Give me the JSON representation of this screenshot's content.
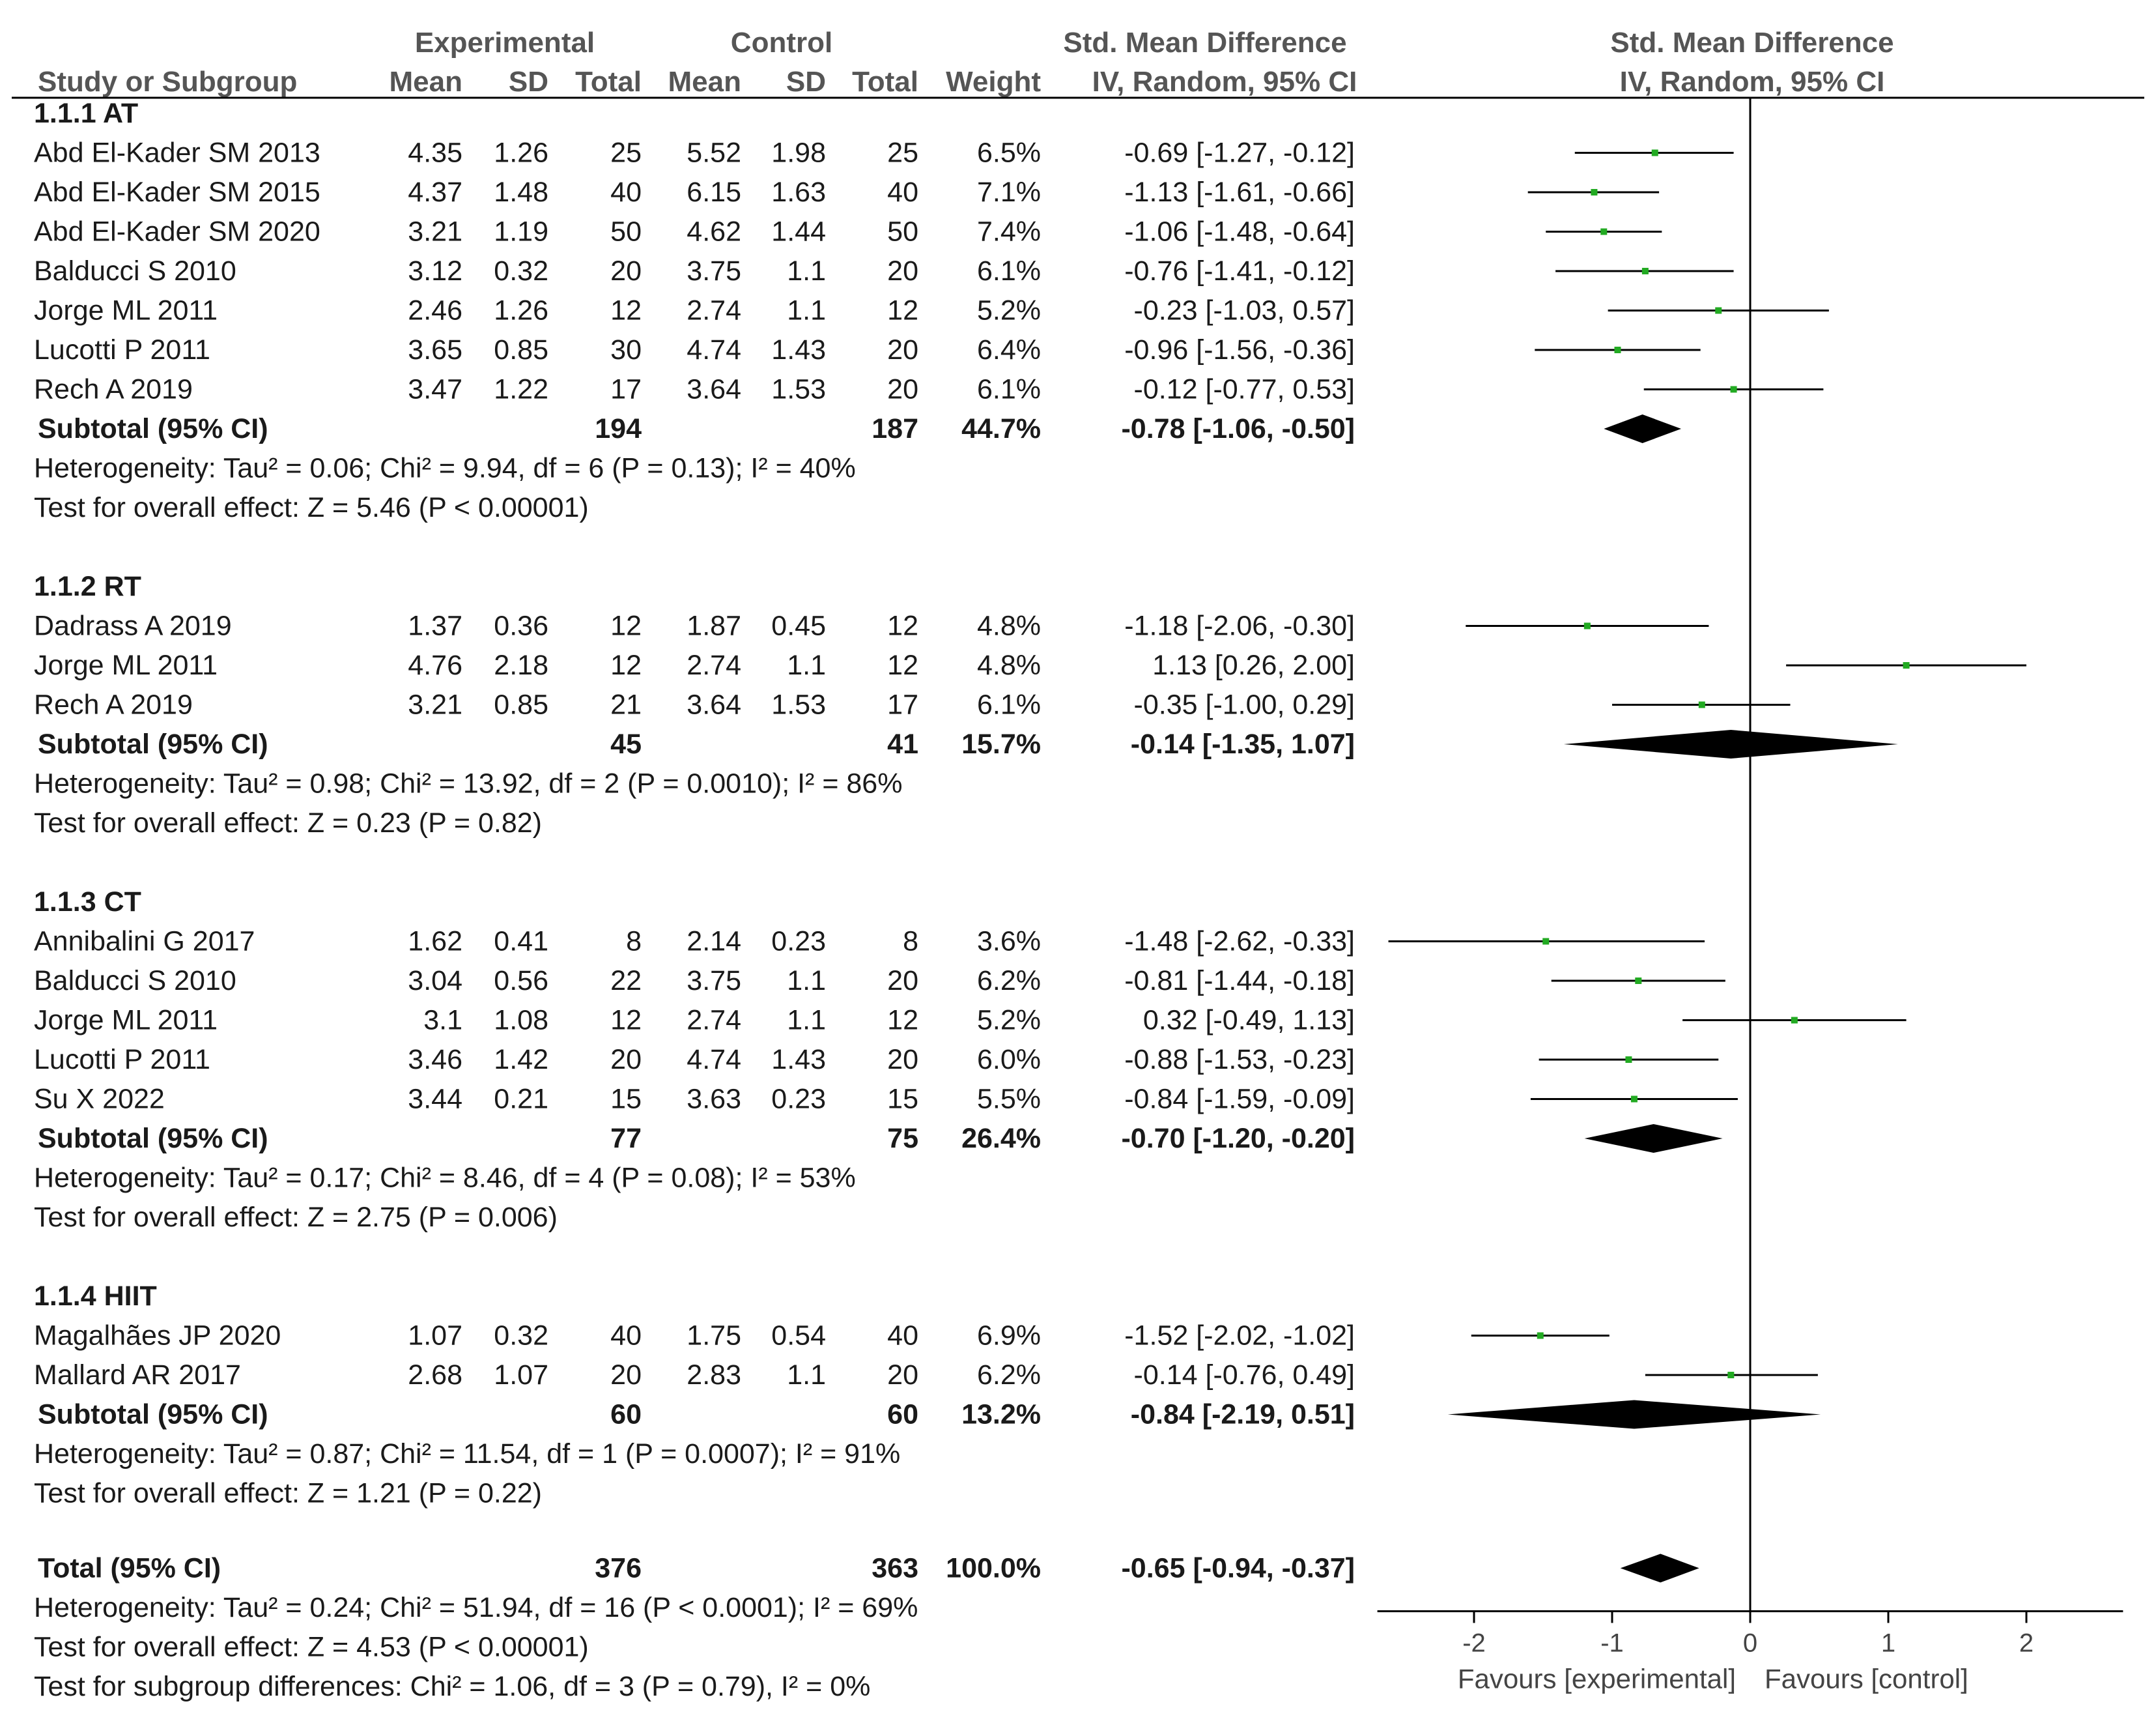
{
  "chart_data": {
    "type": "forest",
    "headers": {
      "experimental": "Experimental",
      "control": "Control",
      "smd": "Std. Mean Difference",
      "smd_plot": "Std. Mean Difference",
      "study": "Study or Subgroup",
      "mean": "Mean",
      "sd": "SD",
      "total": "Total",
      "mean_c": "Mean",
      "sd_c": "SD",
      "total_c": "Total",
      "weight": "Weight",
      "method": "IV, Random, 95% CI",
      "method_plot": "IV, Random, 95% CI"
    },
    "groups": [
      {
        "label": "1.1.1 AT",
        "studies": [
          {
            "study": "Abd El-Kader SM 2013",
            "mean_e": "4.35",
            "sd_e": "1.26",
            "n_e": "25",
            "mean_c": "5.52",
            "sd_c": "1.98",
            "n_c": "25",
            "weight": "6.5%",
            "ci_text": "-0.69 [-1.27, -0.12]",
            "est": -0.69,
            "lo": -1.27,
            "hi": -0.12
          },
          {
            "study": "Abd El-Kader SM 2015",
            "mean_e": "4.37",
            "sd_e": "1.48",
            "n_e": "40",
            "mean_c": "6.15",
            "sd_c": "1.63",
            "n_c": "40",
            "weight": "7.1%",
            "ci_text": "-1.13 [-1.61, -0.66]",
            "est": -1.13,
            "lo": -1.61,
            "hi": -0.66
          },
          {
            "study": "Abd El-Kader SM 2020",
            "mean_e": "3.21",
            "sd_e": "1.19",
            "n_e": "50",
            "mean_c": "4.62",
            "sd_c": "1.44",
            "n_c": "50",
            "weight": "7.4%",
            "ci_text": "-1.06 [-1.48, -0.64]",
            "est": -1.06,
            "lo": -1.48,
            "hi": -0.64
          },
          {
            "study": "Balducci S 2010",
            "mean_e": "3.12",
            "sd_e": "0.32",
            "n_e": "20",
            "mean_c": "3.75",
            "sd_c": "1.1",
            "n_c": "20",
            "weight": "6.1%",
            "ci_text": "-0.76 [-1.41, -0.12]",
            "est": -0.76,
            "lo": -1.41,
            "hi": -0.12
          },
          {
            "study": "Jorge ML 2011",
            "mean_e": "2.46",
            "sd_e": "1.26",
            "n_e": "12",
            "mean_c": "2.74",
            "sd_c": "1.1",
            "n_c": "12",
            "weight": "5.2%",
            "ci_text": "-0.23 [-1.03, 0.57]",
            "est": -0.23,
            "lo": -1.03,
            "hi": 0.57
          },
          {
            "study": "Lucotti P 2011",
            "mean_e": "3.65",
            "sd_e": "0.85",
            "n_e": "30",
            "mean_c": "4.74",
            "sd_c": "1.43",
            "n_c": "20",
            "weight": "6.4%",
            "ci_text": "-0.96 [-1.56, -0.36]",
            "est": -0.96,
            "lo": -1.56,
            "hi": -0.36
          },
          {
            "study": "Rech A 2019",
            "mean_e": "3.47",
            "sd_e": "1.22",
            "n_e": "17",
            "mean_c": "3.64",
            "sd_c": "1.53",
            "n_c": "20",
            "weight": "6.1%",
            "ci_text": "-0.12 [-0.77, 0.53]",
            "est": -0.12,
            "lo": -0.77,
            "hi": 0.53
          }
        ],
        "subtotal": {
          "label": "Subtotal (95% CI)",
          "n_e": "194",
          "n_c": "187",
          "weight": "44.7%",
          "ci_text": "-0.78 [-1.06, -0.50]",
          "est": -0.78,
          "lo": -1.06,
          "hi": -0.5
        },
        "heterogeneity": "Heterogeneity: Tau² = 0.06; Chi² = 9.94, df = 6 (P = 0.13); I² = 40%",
        "overall": "Test for overall effect: Z = 5.46 (P < 0.00001)"
      },
      {
        "label": "1.1.2 RT",
        "studies": [
          {
            "study": "Dadrass A 2019",
            "mean_e": "1.37",
            "sd_e": "0.36",
            "n_e": "12",
            "mean_c": "1.87",
            "sd_c": "0.45",
            "n_c": "12",
            "weight": "4.8%",
            "ci_text": "-1.18 [-2.06, -0.30]",
            "est": -1.18,
            "lo": -2.06,
            "hi": -0.3
          },
          {
            "study": "Jorge ML 2011",
            "mean_e": "4.76",
            "sd_e": "2.18",
            "n_e": "12",
            "mean_c": "2.74",
            "sd_c": "1.1",
            "n_c": "12",
            "weight": "4.8%",
            "ci_text": "1.13 [0.26, 2.00]",
            "est": 1.13,
            "lo": 0.26,
            "hi": 2.0
          },
          {
            "study": "Rech A 2019",
            "mean_e": "3.21",
            "sd_e": "0.85",
            "n_e": "21",
            "mean_c": "3.64",
            "sd_c": "1.53",
            "n_c": "17",
            "weight": "6.1%",
            "ci_text": "-0.35 [-1.00, 0.29]",
            "est": -0.35,
            "lo": -1.0,
            "hi": 0.29
          }
        ],
        "subtotal": {
          "label": "Subtotal (95% CI)",
          "n_e": "45",
          "n_c": "41",
          "weight": "15.7%",
          "ci_text": "-0.14 [-1.35, 1.07]",
          "est": -0.14,
          "lo": -1.35,
          "hi": 1.07
        },
        "heterogeneity": "Heterogeneity: Tau² = 0.98; Chi² = 13.92, df = 2 (P = 0.0010); I² = 86%",
        "overall": "Test for overall effect: Z = 0.23 (P = 0.82)"
      },
      {
        "label": "1.1.3 CT",
        "studies": [
          {
            "study": "Annibalini G 2017",
            "mean_e": "1.62",
            "sd_e": "0.41",
            "n_e": "8",
            "mean_c": "2.14",
            "sd_c": "0.23",
            "n_c": "8",
            "weight": "3.6%",
            "ci_text": "-1.48 [-2.62, -0.33]",
            "est": -1.48,
            "lo": -2.62,
            "hi": -0.33
          },
          {
            "study": "Balducci S 2010",
            "mean_e": "3.04",
            "sd_e": "0.56",
            "n_e": "22",
            "mean_c": "3.75",
            "sd_c": "1.1",
            "n_c": "20",
            "weight": "6.2%",
            "ci_text": "-0.81 [-1.44, -0.18]",
            "est": -0.81,
            "lo": -1.44,
            "hi": -0.18
          },
          {
            "study": "Jorge ML 2011",
            "mean_e": "3.1",
            "sd_e": "1.08",
            "n_e": "12",
            "mean_c": "2.74",
            "sd_c": "1.1",
            "n_c": "12",
            "weight": "5.2%",
            "ci_text": "0.32 [-0.49, 1.13]",
            "est": 0.32,
            "lo": -0.49,
            "hi": 1.13
          },
          {
            "study": "Lucotti P 2011",
            "mean_e": "3.46",
            "sd_e": "1.42",
            "n_e": "20",
            "mean_c": "4.74",
            "sd_c": "1.43",
            "n_c": "20",
            "weight": "6.0%",
            "ci_text": "-0.88 [-1.53, -0.23]",
            "est": -0.88,
            "lo": -1.53,
            "hi": -0.23
          },
          {
            "study": "Su X 2022",
            "mean_e": "3.44",
            "sd_e": "0.21",
            "n_e": "15",
            "mean_c": "3.63",
            "sd_c": "0.23",
            "n_c": "15",
            "weight": "5.5%",
            "ci_text": "-0.84 [-1.59, -0.09]",
            "est": -0.84,
            "lo": -1.59,
            "hi": -0.09
          }
        ],
        "subtotal": {
          "label": "Subtotal (95% CI)",
          "n_e": "77",
          "n_c": "75",
          "weight": "26.4%",
          "ci_text": "-0.70 [-1.20, -0.20]",
          "est": -0.7,
          "lo": -1.2,
          "hi": -0.2
        },
        "heterogeneity": "Heterogeneity: Tau² = 0.17; Chi² = 8.46, df = 4 (P = 0.08); I² = 53%",
        "overall": "Test for overall effect: Z = 2.75 (P = 0.006)"
      },
      {
        "label": "1.1.4 HIIT",
        "studies": [
          {
            "study": "Magalhães JP 2020",
            "mean_e": "1.07",
            "sd_e": "0.32",
            "n_e": "40",
            "mean_c": "1.75",
            "sd_c": "0.54",
            "n_c": "40",
            "weight": "6.9%",
            "ci_text": "-1.52 [-2.02, -1.02]",
            "est": -1.52,
            "lo": -2.02,
            "hi": -1.02
          },
          {
            "study": "Mallard AR 2017",
            "mean_e": "2.68",
            "sd_e": "1.07",
            "n_e": "20",
            "mean_c": "2.83",
            "sd_c": "1.1",
            "n_c": "20",
            "weight": "6.2%",
            "ci_text": "-0.14 [-0.76, 0.49]",
            "est": -0.14,
            "lo": -0.76,
            "hi": 0.49
          }
        ],
        "subtotal": {
          "label": "Subtotal (95% CI)",
          "n_e": "60",
          "n_c": "60",
          "weight": "13.2%",
          "ci_text": "-0.84 [-2.19, 0.51]",
          "est": -0.84,
          "lo": -2.19,
          "hi": 0.51
        },
        "heterogeneity": "Heterogeneity: Tau² = 0.87; Chi² = 11.54, df = 1 (P = 0.0007); I² = 91%",
        "overall": "Test for overall effect: Z = 1.21 (P = 0.22)"
      }
    ],
    "total": {
      "label": "Total (95% CI)",
      "n_e": "376",
      "n_c": "363",
      "weight": "100.0%",
      "ci_text": "-0.65 [-0.94, -0.37]",
      "est": -0.65,
      "lo": -0.94,
      "hi": -0.37
    },
    "total_notes": [
      "Heterogeneity: Tau² = 0.24; Chi² = 51.94, df = 16 (P < 0.0001); I² = 69%",
      "Test for overall effect: Z = 4.53 (P < 0.00001)",
      "Test for subgroup differences: Chi² = 1.06, df = 3 (P = 0.79), I² = 0%"
    ],
    "axis": {
      "xlim": [
        -2.7,
        2.7
      ],
      "ticks": [
        -2,
        -1,
        0,
        1,
        2
      ],
      "tick_labels": [
        "-2",
        "-1",
        "0",
        "1",
        "2"
      ],
      "null_value": 0
    },
    "favours_left": "Favours [experimental]",
    "favours_right": "Favours [control]",
    "colors": {
      "point": "#22aa22",
      "line": "#000000",
      "diamond": "#000000",
      "header": "#555555",
      "text": "#1a1a1a"
    }
  }
}
